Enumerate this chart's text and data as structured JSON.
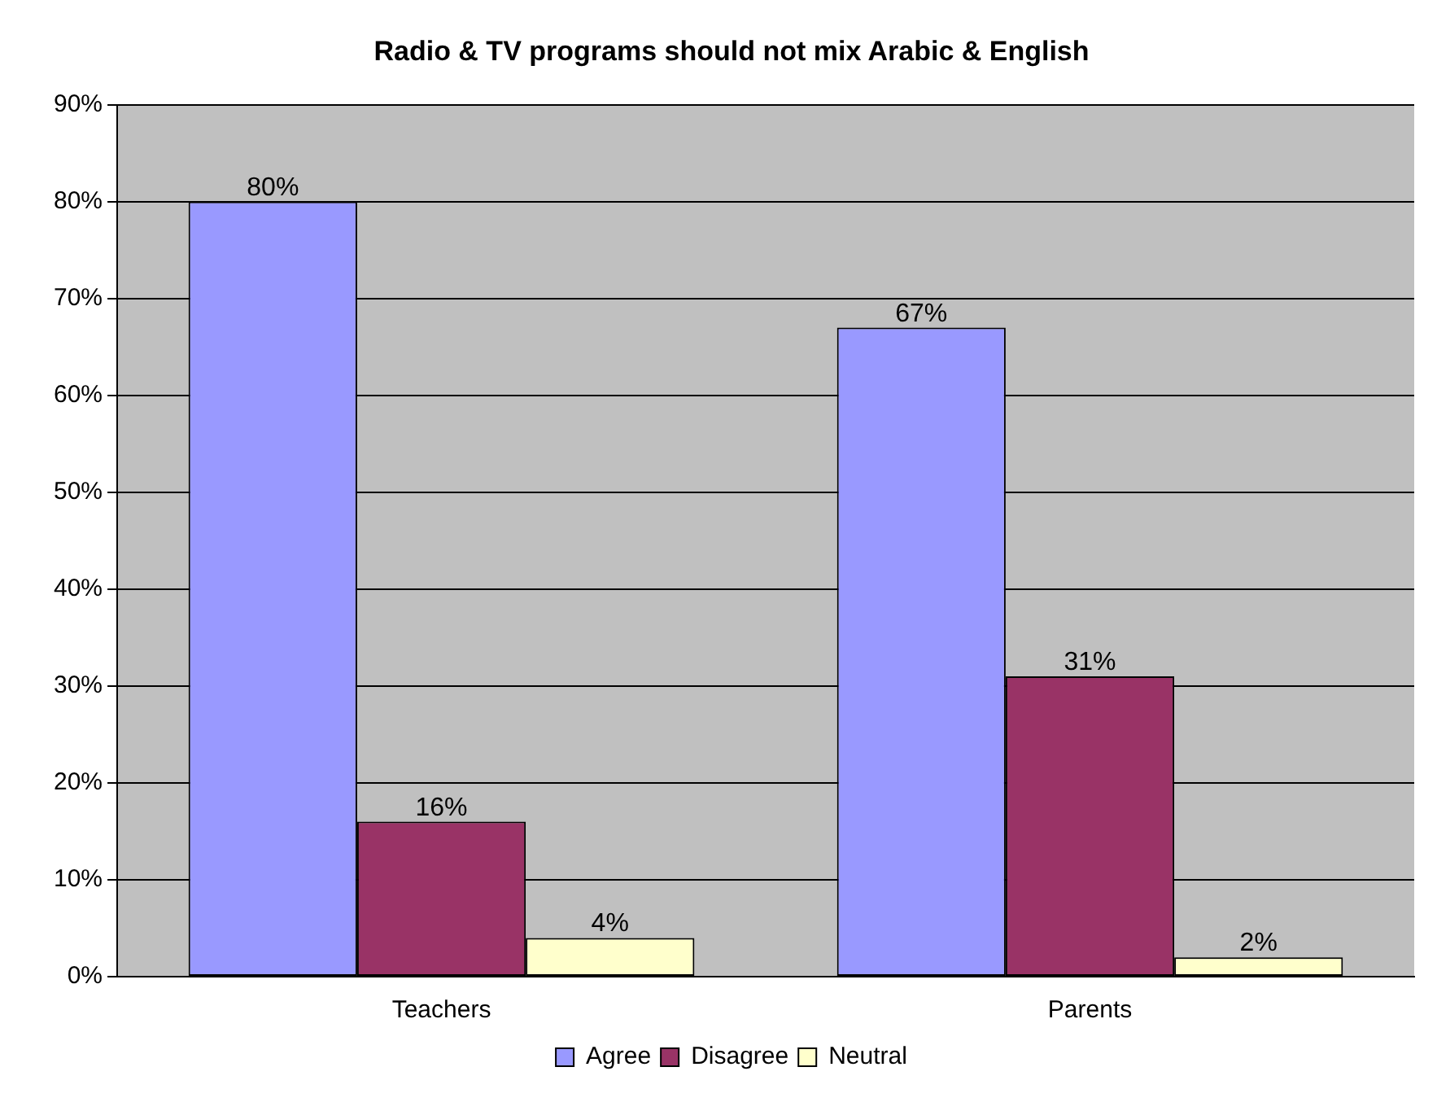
{
  "chart_data": {
    "type": "bar",
    "title": "Radio & TV programs should not mix Arabic & English",
    "categories": [
      "Teachers",
      "Parents"
    ],
    "series": [
      {
        "name": "Agree",
        "color": "#9999ff",
        "values": [
          80,
          67
        ],
        "value_labels": [
          "80%",
          "67%"
        ]
      },
      {
        "name": "Disagree",
        "color": "#993366",
        "values": [
          16,
          31
        ],
        "value_labels": [
          "16%",
          "31%"
        ]
      },
      {
        "name": "Neutral",
        "color": "#ffffcc",
        "values": [
          4,
          2
        ],
        "value_labels": [
          "4%",
          "2%"
        ]
      }
    ],
    "ylim": [
      0,
      90
    ],
    "yticks": [
      {
        "value": 0,
        "label": "0%"
      },
      {
        "value": 10,
        "label": "10%"
      },
      {
        "value": 20,
        "label": "20%"
      },
      {
        "value": 30,
        "label": "30%"
      },
      {
        "value": 40,
        "label": "40%"
      },
      {
        "value": 50,
        "label": "50%"
      },
      {
        "value": 60,
        "label": "60%"
      },
      {
        "value": 70,
        "label": "70%"
      },
      {
        "value": 80,
        "label": "80%"
      },
      {
        "value": 90,
        "label": "90%"
      }
    ],
    "grid": "y",
    "legend": "bottom"
  }
}
